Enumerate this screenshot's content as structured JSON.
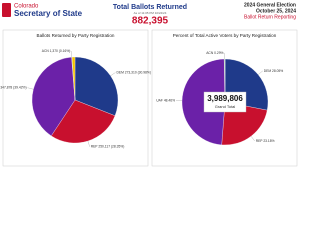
{
  "header": {
    "logo_top": "Colorado",
    "logo_bottom": "Secretary of State",
    "title": "Total Ballots Returned",
    "as_of": "As of 11:05 PM 10/24/24",
    "total": "882,395",
    "election": "2024 General Election",
    "date": "October 25, 2024",
    "report": "Ballot Return Reporting"
  },
  "chart_data": [
    {
      "type": "pie",
      "title": "Ballots Returned by Party Registration",
      "categories": [
        "DEM",
        "REP",
        "UAF",
        "ACN",
        null
      ],
      "values": [
        273310,
        250117,
        347878,
        1370,
        9720
      ],
      "value_labels": [
        "273,310 (30.98%)",
        "250,117 (28.35%)",
        "347,878 (39.42%)",
        "1,370 (0.16%)",
        null
      ],
      "colors": [
        "#1f3a8a",
        "#c8102e",
        "#6b21a8",
        "#2e8b57",
        "#f2c400"
      ]
    },
    {
      "type": "pie",
      "title": "Percent of Total Active Voters by Party Registration",
      "categories": [
        "DEM",
        "REP",
        "UAF",
        "ACN",
        null
      ],
      "values": [
        28.05,
        23.18,
        48.46,
        0.29,
        0.02
      ],
      "value_labels": [
        "28.05%",
        "23.18%",
        "48.46%",
        "0.29%",
        null
      ],
      "colors": [
        "#1f3a8a",
        "#c8102e",
        "#6b21a8",
        "#2e8b57",
        "#f2c400"
      ],
      "center_value": "3,989,806",
      "center_label": "Grand Total"
    }
  ]
}
